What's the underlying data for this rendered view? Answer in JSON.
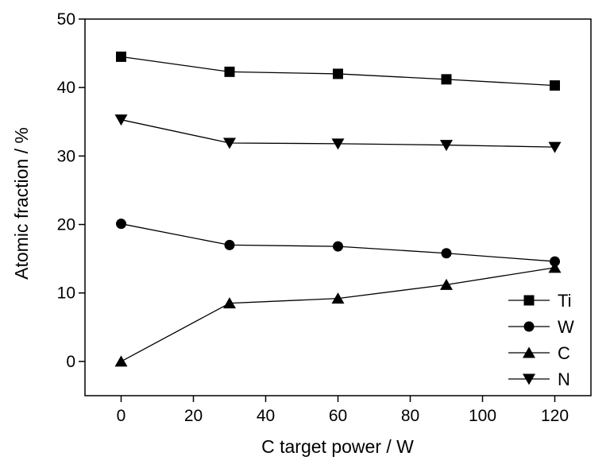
{
  "chart_data": {
    "type": "line",
    "xlabel": "C target power / W",
    "ylabel": "Atomic fraction / %",
    "xlim": [
      -10,
      130
    ],
    "ylim": [
      -5,
      50
    ],
    "xticks": [
      "0",
      "20",
      "40",
      "60",
      "80",
      "100",
      "120"
    ],
    "yticks": [
      "0",
      "10",
      "20",
      "30",
      "40",
      "50"
    ],
    "x": [
      0,
      30,
      60,
      90,
      120
    ],
    "legend_position": "lower-right",
    "grid": false,
    "series": [
      {
        "name": "Ti",
        "marker": "square",
        "values": [
          44.5,
          42.3,
          42.0,
          41.2,
          40.3
        ]
      },
      {
        "name": "W",
        "marker": "circle",
        "values": [
          20.1,
          17.0,
          16.8,
          15.8,
          14.6
        ]
      },
      {
        "name": "C",
        "marker": "triangle-up",
        "values": [
          0.0,
          8.5,
          9.2,
          11.2,
          13.7
        ]
      },
      {
        "name": "N",
        "marker": "triangle-down",
        "values": [
          35.3,
          31.9,
          31.8,
          31.6,
          31.3
        ]
      }
    ]
  }
}
